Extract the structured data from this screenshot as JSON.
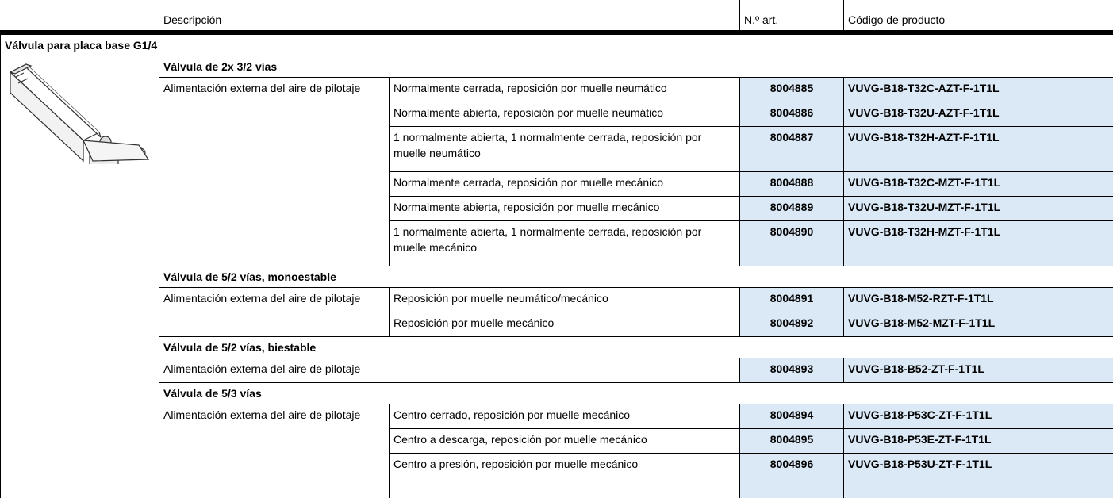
{
  "header": {
    "columns": [
      "Descripción",
      "N.º art.",
      "Código de producto"
    ]
  },
  "section": "Válvula para placa base G1/4",
  "groups": [
    {
      "title": "Válvula de 2x 3/2 vías",
      "feed": "Alimentación externa del aire de pilotaje",
      "rows": [
        {
          "description": "Normalmente cerrada, reposición por muelle neumático",
          "article": "8004885",
          "code": "VUVG-B18-T32C-AZT-F-1T1L"
        },
        {
          "description": "Normalmente abierta, reposición por muelle neumático",
          "article": "8004886",
          "code": "VUVG-B18-T32U-AZT-F-1T1L"
        },
        {
          "description": "1 normalmente abierta, 1 normalmente cerrada, reposición por muelle neumático",
          "article": "8004887",
          "code": "VUVG-B18-T32H-AZT-F-1T1L"
        },
        {
          "description": "Normalmente cerrada, reposición por muelle mecánico",
          "article": "8004888",
          "code": "VUVG-B18-T32C-MZT-F-1T1L"
        },
        {
          "description": "Normalmente abierta, reposición por muelle mecánico",
          "article": "8004889",
          "code": "VUVG-B18-T32U-MZT-F-1T1L"
        },
        {
          "description": "1 normalmente abierta, 1 normalmente cerrada, reposición por muelle mecánico",
          "article": "8004890",
          "code": "VUVG-B18-T32H-MZT-F-1T1L"
        }
      ]
    },
    {
      "title": "Válvula de 5/2 vías, monoestable",
      "feed": "Alimentación externa del aire de pilotaje",
      "rows": [
        {
          "description": "Reposición por muelle neumático/mecánico",
          "article": "8004891",
          "code": "VUVG-B18-M52-RZT-F-1T1L"
        },
        {
          "description": "Reposición por muelle mecánico",
          "article": "8004892",
          "code": "VUVG-B18-M52-MZT-F-1T1L"
        }
      ]
    },
    {
      "title": "Válvula de 5/2 vías, biestable",
      "feed": "Alimentación externa del aire de pilotaje",
      "rows": [
        {
          "article": "8004893",
          "code": "VUVG-B18-B52-ZT-F-1T1L"
        }
      ]
    },
    {
      "title": "Válvula de 5/3 vías",
      "feed": "Alimentación externa del aire de pilotaje",
      "rows": [
        {
          "description": "Centro cerrado, reposición por muelle mecánico",
          "article": "8004894",
          "code": "VUVG-B18-P53C-ZT-F-1T1L"
        },
        {
          "description": "Centro a descarga, reposición por muelle mecánico",
          "article": "8004895",
          "code": "VUVG-B18-P53E-ZT-F-1T1L"
        },
        {
          "description": "Centro a presión, reposición por muelle mecánico",
          "article": "8004896",
          "code": "VUVG-B18-P53U-ZT-F-1T1L"
        }
      ]
    }
  ]
}
